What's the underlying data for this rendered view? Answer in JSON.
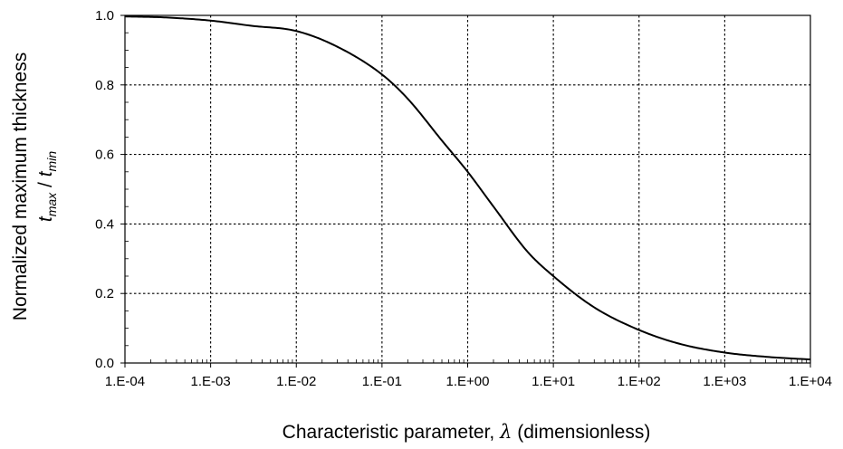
{
  "chart_data": {
    "type": "line",
    "xlabel": {
      "text_before": "Characteristic parameter, ",
      "symbol": "λ",
      "text_after": " (dimensionless)"
    },
    "ylabel": {
      "line1": "Normalized maximum thickness",
      "line2": {
        "t1": "t",
        "sub1": "max",
        "sep": " / ",
        "t2": "t",
        "sub2": "min"
      }
    },
    "x_scale": "log",
    "xlim": [
      0.0001,
      10000
    ],
    "ylim": [
      0,
      1
    ],
    "x_ticks": [
      0.0001,
      0.001,
      0.01,
      0.1,
      1,
      10,
      100,
      1000,
      10000
    ],
    "x_tick_labels": [
      "1.E-04",
      "1.E-03",
      "1.E-02",
      "1.E-01",
      "1.E+00",
      "1.E+01",
      "1.E+02",
      "1.E+03",
      "1.E+04"
    ],
    "y_ticks": [
      0,
      0.2,
      0.4,
      0.6,
      0.8,
      1
    ],
    "y_tick_labels": [
      "0.0",
      "0.2",
      "0.4",
      "0.6",
      "0.8",
      "1.0"
    ],
    "grid": true,
    "grid_style": "dotted",
    "series": [
      {
        "color": "#000000",
        "x": [
          0.0001,
          0.0003,
          0.001,
          0.003,
          0.01,
          0.03,
          0.1,
          0.2,
          0.5,
          1,
          2,
          5,
          10,
          30,
          100,
          300,
          1000,
          3000,
          10000
        ],
        "y": [
          0.997,
          0.994,
          0.985,
          0.97,
          0.955,
          0.91,
          0.83,
          0.76,
          0.64,
          0.55,
          0.45,
          0.32,
          0.25,
          0.16,
          0.095,
          0.055,
          0.03,
          0.018,
          0.01
        ]
      }
    ]
  }
}
